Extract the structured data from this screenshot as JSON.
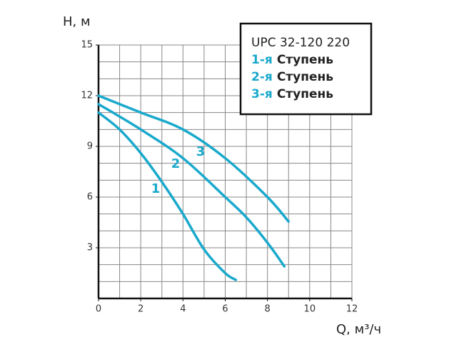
{
  "chart_data": {
    "type": "line",
    "legend_title": "UPC 32-120 220",
    "legend_text": "Ступень",
    "xlabel": "Q, м³/ч",
    "ylabel": "H, м",
    "xlim": [
      0,
      12
    ],
    "xticks": [
      0,
      2,
      4,
      6,
      8,
      10,
      12
    ],
    "ylim": [
      0,
      15
    ],
    "yticks": [
      3,
      6,
      9,
      12,
      15
    ],
    "grid": true,
    "grid_step": 1,
    "series": [
      {
        "name": "1-я",
        "label": "1",
        "color": "#1aa9cc",
        "x": [
          0,
          1,
          2,
          3,
          4,
          5,
          6,
          6.5
        ],
        "values": [
          11,
          10,
          8.6,
          6.9,
          5,
          2.9,
          1.5,
          1.1
        ]
      },
      {
        "name": "2-я",
        "label": "2",
        "color": "#1aa9cc",
        "x": [
          0,
          2,
          4,
          6,
          7,
          8,
          8.8
        ],
        "values": [
          11.5,
          10,
          8.3,
          6,
          4.8,
          3.3,
          1.9
        ]
      },
      {
        "name": "3-я",
        "label": "3",
        "color": "#1aa9cc",
        "x": [
          0,
          2,
          4,
          6,
          8,
          9
        ],
        "values": [
          12,
          11,
          10,
          8.3,
          6,
          4.55
        ]
      }
    ]
  }
}
